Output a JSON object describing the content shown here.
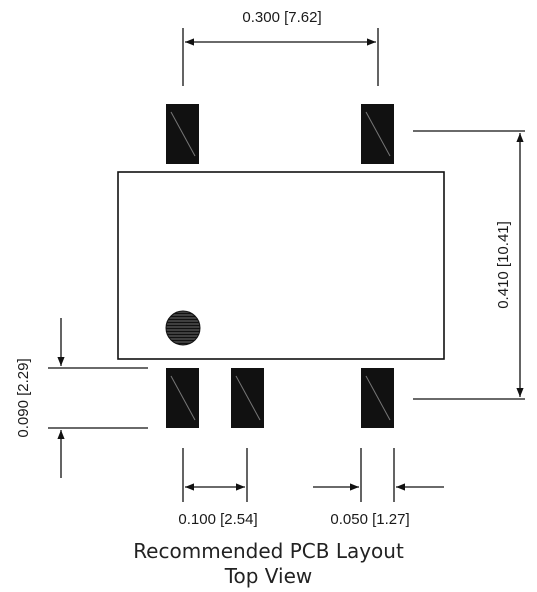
{
  "dimensions": {
    "pitch_top": "0.300 [7.62]",
    "overall_height": "0.410 [10.41]",
    "pad_height": "0.090 [2.29]",
    "pad_pitch": "0.100 [2.54]",
    "pad_width": "0.050 [1.27]"
  },
  "caption": {
    "line1": "Recommended PCB Layout",
    "line2": "Top View"
  },
  "colors": {
    "line": "#111111",
    "pad": "#111111",
    "pin1_marker": "#333333"
  }
}
